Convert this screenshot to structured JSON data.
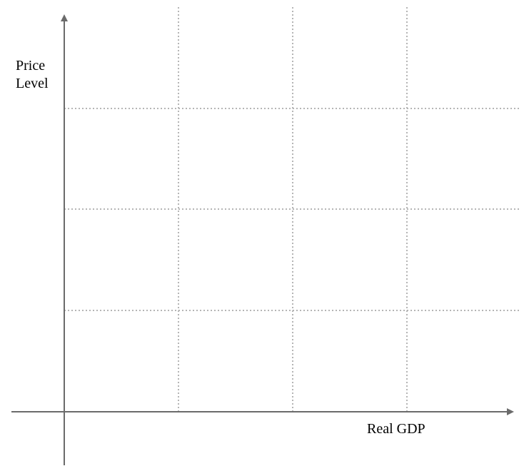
{
  "chart_data": {
    "type": "line",
    "title": "",
    "xlabel": "Real GDP",
    "ylabel_lines": [
      "Price",
      "Level"
    ],
    "series": [],
    "grid": true,
    "grid_style": "dotted",
    "legend": "none",
    "colors": {
      "axis": "#6b6b6b",
      "grid": "#b5b5b5",
      "text": "#000000",
      "background": "#ffffff"
    }
  }
}
